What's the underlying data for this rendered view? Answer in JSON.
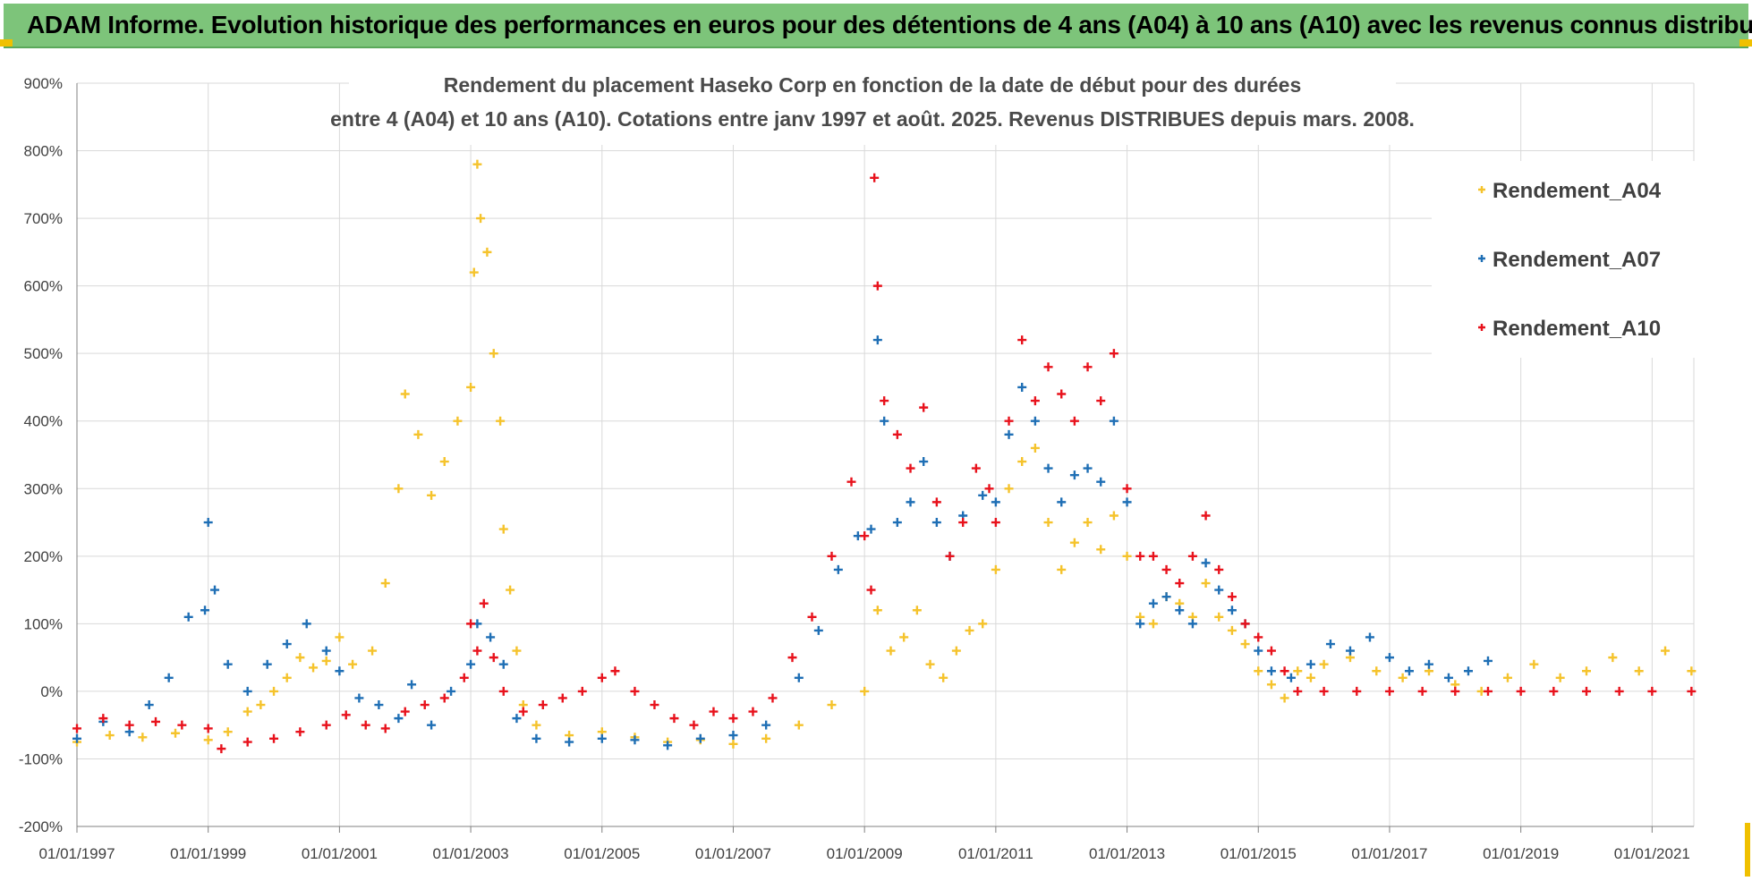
{
  "banner": {
    "title": "ADAM Informe. Evolution historique des performances en euros pour des détentions de 4 ans (A04) à 10 ans (A10) avec les revenus connus distribués"
  },
  "colors": {
    "banner_bg": "#7dc47a",
    "A04": "#f5c32c",
    "A07": "#1f6fb5",
    "A10": "#e8121c",
    "grid": "#d9d9d9"
  },
  "chart_data": {
    "type": "scatter",
    "title_lines": [
      "Rendement du placement Haseko Corp en fonction de la date de début pour des durées",
      "entre 4 (A04) et 10 ans (A10). Cotations entre janv 1997 et août. 2025. Revenus DISTRIBUES depuis mars. 2008."
    ],
    "xlabel": "",
    "ylabel": "",
    "x_ticks": [
      "01/01/1997",
      "01/01/1999",
      "01/01/2001",
      "01/01/2003",
      "01/01/2005",
      "01/01/2007",
      "01/01/2009",
      "01/01/2011",
      "01/01/2013",
      "01/01/2015",
      "01/01/2017",
      "01/01/2019",
      "01/01/2021"
    ],
    "xlim": [
      "01/01/1997",
      "21/08/2021"
    ],
    "y_ticks": [
      "900%",
      "800%",
      "700%",
      "600%",
      "500%",
      "400%",
      "300%",
      "200%",
      "100%",
      "0%",
      "-100%",
      "-200%"
    ],
    "ylim": [
      -200,
      900
    ],
    "y_unit": "%",
    "grid": true,
    "marker": "+",
    "legend_position": "right",
    "series": [
      {
        "name": "Rendement_A04",
        "color": "#f5c32c",
        "points": [
          [
            1997.0,
            -75
          ],
          [
            1997.5,
            -65
          ],
          [
            1998.0,
            -68
          ],
          [
            1998.5,
            -62
          ],
          [
            1999.0,
            -72
          ],
          [
            1999.3,
            -60
          ],
          [
            1999.6,
            -30
          ],
          [
            1999.8,
            -20
          ],
          [
            2000.0,
            0
          ],
          [
            2000.2,
            20
          ],
          [
            2000.4,
            50
          ],
          [
            2000.6,
            35
          ],
          [
            2000.8,
            45
          ],
          [
            2001.0,
            80
          ],
          [
            2001.2,
            40
          ],
          [
            2001.5,
            60
          ],
          [
            2001.7,
            160
          ],
          [
            2001.9,
            300
          ],
          [
            2002.0,
            440
          ],
          [
            2002.2,
            380
          ],
          [
            2002.4,
            290
          ],
          [
            2002.6,
            340
          ],
          [
            2002.8,
            400
          ],
          [
            2003.0,
            450
          ],
          [
            2003.05,
            620
          ],
          [
            2003.1,
            780
          ],
          [
            2003.15,
            700
          ],
          [
            2003.25,
            650
          ],
          [
            2003.35,
            500
          ],
          [
            2003.45,
            400
          ],
          [
            2003.5,
            240
          ],
          [
            2003.6,
            150
          ],
          [
            2003.7,
            60
          ],
          [
            2003.8,
            -20
          ],
          [
            2004.0,
            -50
          ],
          [
            2004.5,
            -65
          ],
          [
            2005.0,
            -60
          ],
          [
            2005.5,
            -68
          ],
          [
            2006.0,
            -75
          ],
          [
            2006.5,
            -72
          ],
          [
            2007.0,
            -78
          ],
          [
            2007.5,
            -70
          ],
          [
            2008.0,
            -50
          ],
          [
            2008.5,
            -20
          ],
          [
            2009.0,
            0
          ],
          [
            2009.2,
            120
          ],
          [
            2009.4,
            60
          ],
          [
            2009.6,
            80
          ],
          [
            2009.8,
            120
          ],
          [
            2010.0,
            40
          ],
          [
            2010.2,
            20
          ],
          [
            2010.4,
            60
          ],
          [
            2010.6,
            90
          ],
          [
            2010.8,
            100
          ],
          [
            2011.0,
            180
          ],
          [
            2011.2,
            300
          ],
          [
            2011.4,
            340
          ],
          [
            2011.6,
            360
          ],
          [
            2011.8,
            250
          ],
          [
            2012.0,
            180
          ],
          [
            2012.2,
            220
          ],
          [
            2012.4,
            250
          ],
          [
            2012.6,
            210
          ],
          [
            2012.8,
            260
          ],
          [
            2013.0,
            200
          ],
          [
            2013.2,
            110
          ],
          [
            2013.4,
            100
          ],
          [
            2013.6,
            140
          ],
          [
            2013.8,
            130
          ],
          [
            2014.0,
            110
          ],
          [
            2014.2,
            160
          ],
          [
            2014.4,
            110
          ],
          [
            2014.6,
            90
          ],
          [
            2014.8,
            70
          ],
          [
            2015.0,
            30
          ],
          [
            2015.2,
            10
          ],
          [
            2015.4,
            -10
          ],
          [
            2015.6,
            30
          ],
          [
            2015.8,
            20
          ],
          [
            2016.0,
            40
          ],
          [
            2016.4,
            50
          ],
          [
            2016.8,
            30
          ],
          [
            2017.2,
            20
          ],
          [
            2017.6,
            30
          ],
          [
            2018.0,
            10
          ],
          [
            2018.4,
            0
          ],
          [
            2018.8,
            20
          ],
          [
            2019.2,
            40
          ],
          [
            2019.6,
            20
          ],
          [
            2020.0,
            30
          ],
          [
            2020.4,
            50
          ],
          [
            2020.8,
            30
          ],
          [
            2021.2,
            60
          ],
          [
            2021.6,
            30
          ]
        ]
      },
      {
        "name": "Rendement_A07",
        "color": "#1f6fb5",
        "points": [
          [
            1997.0,
            -70
          ],
          [
            1997.4,
            -45
          ],
          [
            1997.8,
            -60
          ],
          [
            1998.1,
            -20
          ],
          [
            1998.4,
            20
          ],
          [
            1998.7,
            110
          ],
          [
            1998.95,
            120
          ],
          [
            1999.0,
            250
          ],
          [
            1999.1,
            150
          ],
          [
            1999.3,
            40
          ],
          [
            1999.6,
            0
          ],
          [
            1999.9,
            40
          ],
          [
            2000.2,
            70
          ],
          [
            2000.5,
            100
          ],
          [
            2000.8,
            60
          ],
          [
            2001.0,
            30
          ],
          [
            2001.3,
            -10
          ],
          [
            2001.6,
            -20
          ],
          [
            2001.9,
            -40
          ],
          [
            2002.1,
            10
          ],
          [
            2002.4,
            -50
          ],
          [
            2002.7,
            0
          ],
          [
            2003.0,
            40
          ],
          [
            2003.1,
            100
          ],
          [
            2003.3,
            80
          ],
          [
            2003.5,
            40
          ],
          [
            2003.7,
            -40
          ],
          [
            2004.0,
            -70
          ],
          [
            2004.5,
            -75
          ],
          [
            2005.0,
            -70
          ],
          [
            2005.5,
            -72
          ],
          [
            2006.0,
            -80
          ],
          [
            2006.5,
            -70
          ],
          [
            2007.0,
            -65
          ],
          [
            2007.5,
            -50
          ],
          [
            2008.0,
            20
          ],
          [
            2008.3,
            90
          ],
          [
            2008.6,
            180
          ],
          [
            2008.9,
            230
          ],
          [
            2009.1,
            240
          ],
          [
            2009.2,
            520
          ],
          [
            2009.3,
            400
          ],
          [
            2009.5,
            250
          ],
          [
            2009.7,
            280
          ],
          [
            2009.9,
            340
          ],
          [
            2010.1,
            250
          ],
          [
            2010.3,
            200
          ],
          [
            2010.5,
            260
          ],
          [
            2010.8,
            290
          ],
          [
            2011.0,
            280
          ],
          [
            2011.2,
            380
          ],
          [
            2011.4,
            450
          ],
          [
            2011.6,
            400
          ],
          [
            2011.8,
            330
          ],
          [
            2012.0,
            280
          ],
          [
            2012.2,
            320
          ],
          [
            2012.4,
            330
          ],
          [
            2012.6,
            310
          ],
          [
            2012.8,
            400
          ],
          [
            2013.0,
            280
          ],
          [
            2013.2,
            100
          ],
          [
            2013.4,
            130
          ],
          [
            2013.6,
            140
          ],
          [
            2013.8,
            120
          ],
          [
            2014.0,
            100
          ],
          [
            2014.2,
            190
          ],
          [
            2014.4,
            150
          ],
          [
            2014.6,
            120
          ],
          [
            2014.8,
            100
          ],
          [
            2015.0,
            60
          ],
          [
            2015.2,
            30
          ],
          [
            2015.5,
            20
          ],
          [
            2015.8,
            40
          ],
          [
            2016.1,
            70
          ],
          [
            2016.4,
            60
          ],
          [
            2016.7,
            80
          ],
          [
            2017.0,
            50
          ],
          [
            2017.3,
            30
          ],
          [
            2017.6,
            40
          ],
          [
            2017.9,
            20
          ],
          [
            2018.2,
            30
          ],
          [
            2018.5,
            45
          ]
        ]
      },
      {
        "name": "Rendement_A10",
        "color": "#e8121c",
        "points": [
          [
            1997.0,
            -55
          ],
          [
            1997.4,
            -40
          ],
          [
            1997.8,
            -50
          ],
          [
            1998.2,
            -45
          ],
          [
            1998.6,
            -50
          ],
          [
            1999.0,
            -55
          ],
          [
            1999.2,
            -85
          ],
          [
            1999.6,
            -75
          ],
          [
            2000.0,
            -70
          ],
          [
            2000.4,
            -60
          ],
          [
            2000.8,
            -50
          ],
          [
            2001.1,
            -35
          ],
          [
            2001.4,
            -50
          ],
          [
            2001.7,
            -55
          ],
          [
            2002.0,
            -30
          ],
          [
            2002.3,
            -20
          ],
          [
            2002.6,
            -10
          ],
          [
            2002.9,
            20
          ],
          [
            2003.0,
            100
          ],
          [
            2003.1,
            60
          ],
          [
            2003.2,
            130
          ],
          [
            2003.35,
            50
          ],
          [
            2003.5,
            0
          ],
          [
            2003.8,
            -30
          ],
          [
            2004.1,
            -20
          ],
          [
            2004.4,
            -10
          ],
          [
            2004.7,
            0
          ],
          [
            2005.0,
            20
          ],
          [
            2005.2,
            30
          ],
          [
            2005.5,
            0
          ],
          [
            2005.8,
            -20
          ],
          [
            2006.1,
            -40
          ],
          [
            2006.4,
            -50
          ],
          [
            2006.7,
            -30
          ],
          [
            2007.0,
            -40
          ],
          [
            2007.3,
            -30
          ],
          [
            2007.6,
            -10
          ],
          [
            2007.9,
            50
          ],
          [
            2008.2,
            110
          ],
          [
            2008.5,
            200
          ],
          [
            2008.8,
            310
          ],
          [
            2009.0,
            230
          ],
          [
            2009.1,
            150
          ],
          [
            2009.15,
            760
          ],
          [
            2009.2,
            600
          ],
          [
            2009.3,
            430
          ],
          [
            2009.5,
            380
          ],
          [
            2009.7,
            330
          ],
          [
            2009.9,
            420
          ],
          [
            2010.1,
            280
          ],
          [
            2010.3,
            200
          ],
          [
            2010.5,
            250
          ],
          [
            2010.7,
            330
          ],
          [
            2010.9,
            300
          ],
          [
            2011.0,
            250
          ],
          [
            2011.2,
            400
          ],
          [
            2011.4,
            520
          ],
          [
            2011.6,
            430
          ],
          [
            2011.8,
            480
          ],
          [
            2012.0,
            440
          ],
          [
            2012.2,
            400
          ],
          [
            2012.4,
            480
          ],
          [
            2012.6,
            430
          ],
          [
            2012.8,
            500
          ],
          [
            2013.0,
            300
          ],
          [
            2013.2,
            200
          ],
          [
            2013.4,
            200
          ],
          [
            2013.6,
            180
          ],
          [
            2013.8,
            160
          ],
          [
            2014.0,
            200
          ],
          [
            2014.2,
            260
          ],
          [
            2014.4,
            180
          ],
          [
            2014.6,
            140
          ],
          [
            2014.8,
            100
          ],
          [
            2015.0,
            80
          ],
          [
            2015.2,
            60
          ],
          [
            2015.4,
            30
          ],
          [
            2015.6,
            0
          ],
          [
            2016.0,
            0
          ],
          [
            2016.5,
            0
          ],
          [
            2017.0,
            0
          ],
          [
            2017.5,
            0
          ],
          [
            2018.0,
            0
          ],
          [
            2018.5,
            0
          ],
          [
            2019.0,
            0
          ],
          [
            2019.5,
            0
          ],
          [
            2020.0,
            0
          ],
          [
            2020.5,
            0
          ],
          [
            2021.0,
            0
          ],
          [
            2021.6,
            0
          ]
        ]
      }
    ]
  }
}
